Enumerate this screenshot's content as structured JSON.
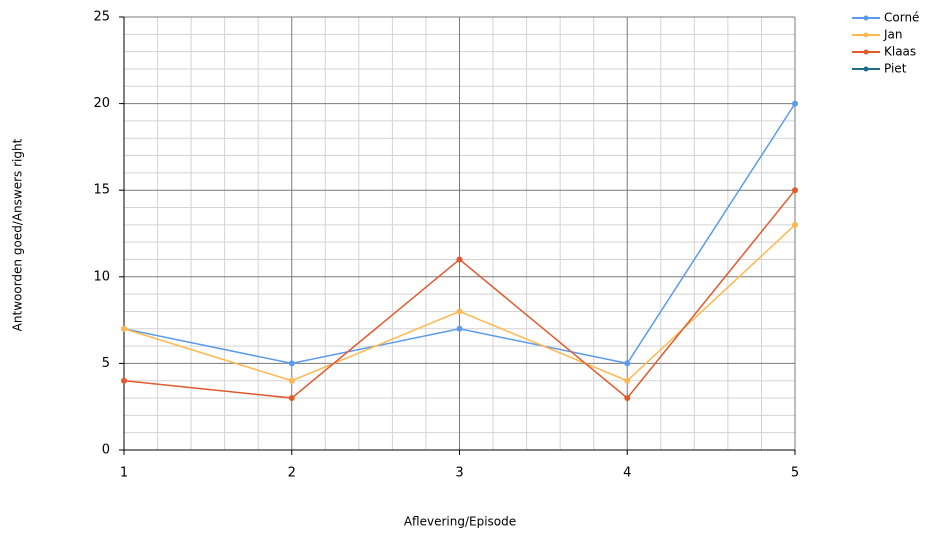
{
  "chart_data": {
    "type": "line",
    "x_label": "Aflevering/Episode",
    "y_label": "Antwoorden goed/Answers right",
    "x": [
      1,
      2,
      3,
      4,
      5
    ],
    "xlim": [
      1,
      5
    ],
    "xticks": [
      1,
      2,
      3,
      4,
      5
    ],
    "ylim": [
      0,
      25
    ],
    "yticks": [
      0,
      5,
      10,
      15,
      20,
      25
    ],
    "grid": true,
    "legend": "right",
    "series": [
      {
        "name": "Corné",
        "color": "#5b9bef",
        "values": [
          7,
          5,
          7,
          5,
          20
        ]
      },
      {
        "name": "Jan",
        "color": "#ffb84f",
        "values": [
          7,
          4,
          8,
          4,
          13
        ]
      },
      {
        "name": "Klaas",
        "color": "#e2592c",
        "values": [
          4,
          3,
          11,
          3,
          15
        ]
      },
      {
        "name": "Piet",
        "color": "#1e6c8c",
        "values": [
          null,
          null,
          null,
          null,
          null
        ]
      }
    ]
  }
}
